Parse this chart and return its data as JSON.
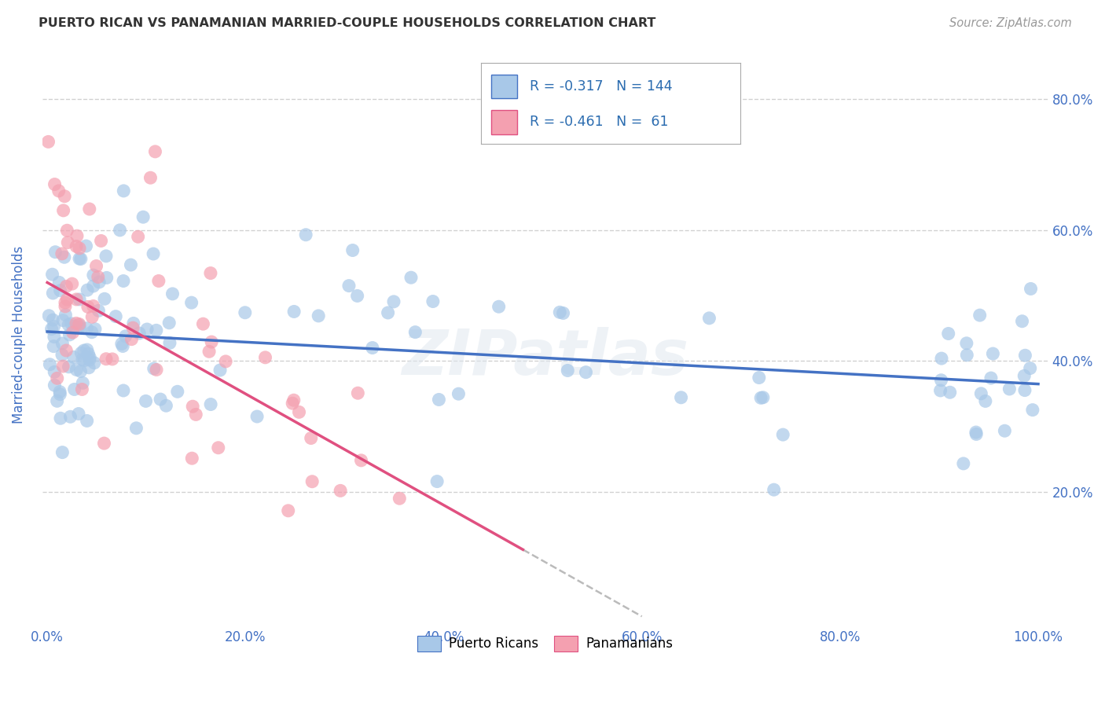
{
  "title": "PUERTO RICAN VS PANAMANIAN MARRIED-COUPLE HOUSEHOLDS CORRELATION CHART",
  "source": "Source: ZipAtlas.com",
  "ylabel": "Married-couple Households",
  "color_blue": "#a8c8e8",
  "color_pink": "#f4a0b0",
  "color_blue_line": "#4472c4",
  "color_pink_line": "#e05080",
  "color_blue_dark": "#2b6cb0",
  "watermark": "ZIPatlas",
  "title_color": "#333333",
  "axis_label_color": "#4472c4",
  "tick_color": "#4472c4",
  "background_color": "#ffffff",
  "grid_color": "#cccccc",
  "legend_r1": "R = -0.317",
  "legend_n1": "N = 144",
  "legend_r2": "R = -0.461",
  "legend_n2": "N =  61"
}
